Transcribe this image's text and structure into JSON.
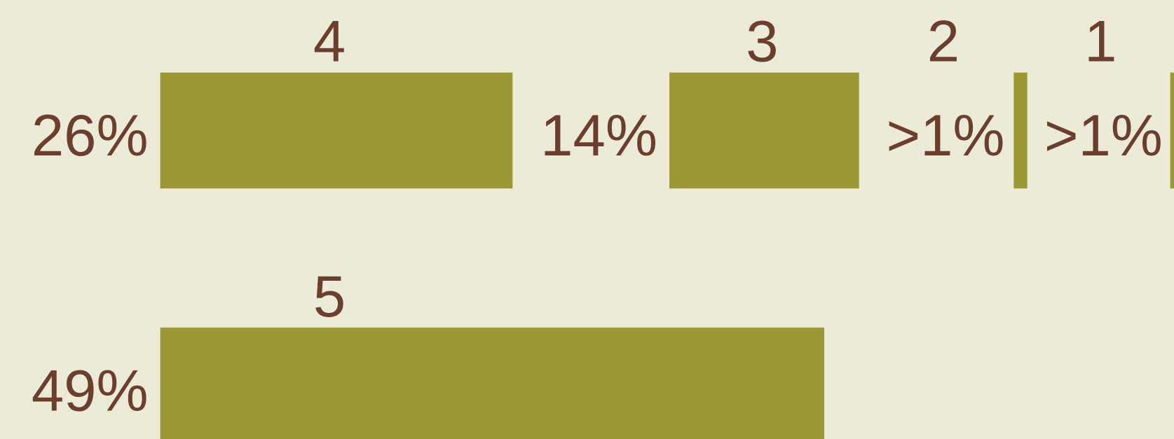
{
  "chart_data": {
    "type": "bar",
    "categories": [
      "4",
      "3",
      "2",
      "1",
      "5"
    ],
    "values": [
      26,
      14,
      1,
      1,
      49
    ],
    "value_labels": [
      "26%",
      "14%",
      ">1%",
      ">1%",
      "49%"
    ],
    "color": "#9c9836"
  }
}
